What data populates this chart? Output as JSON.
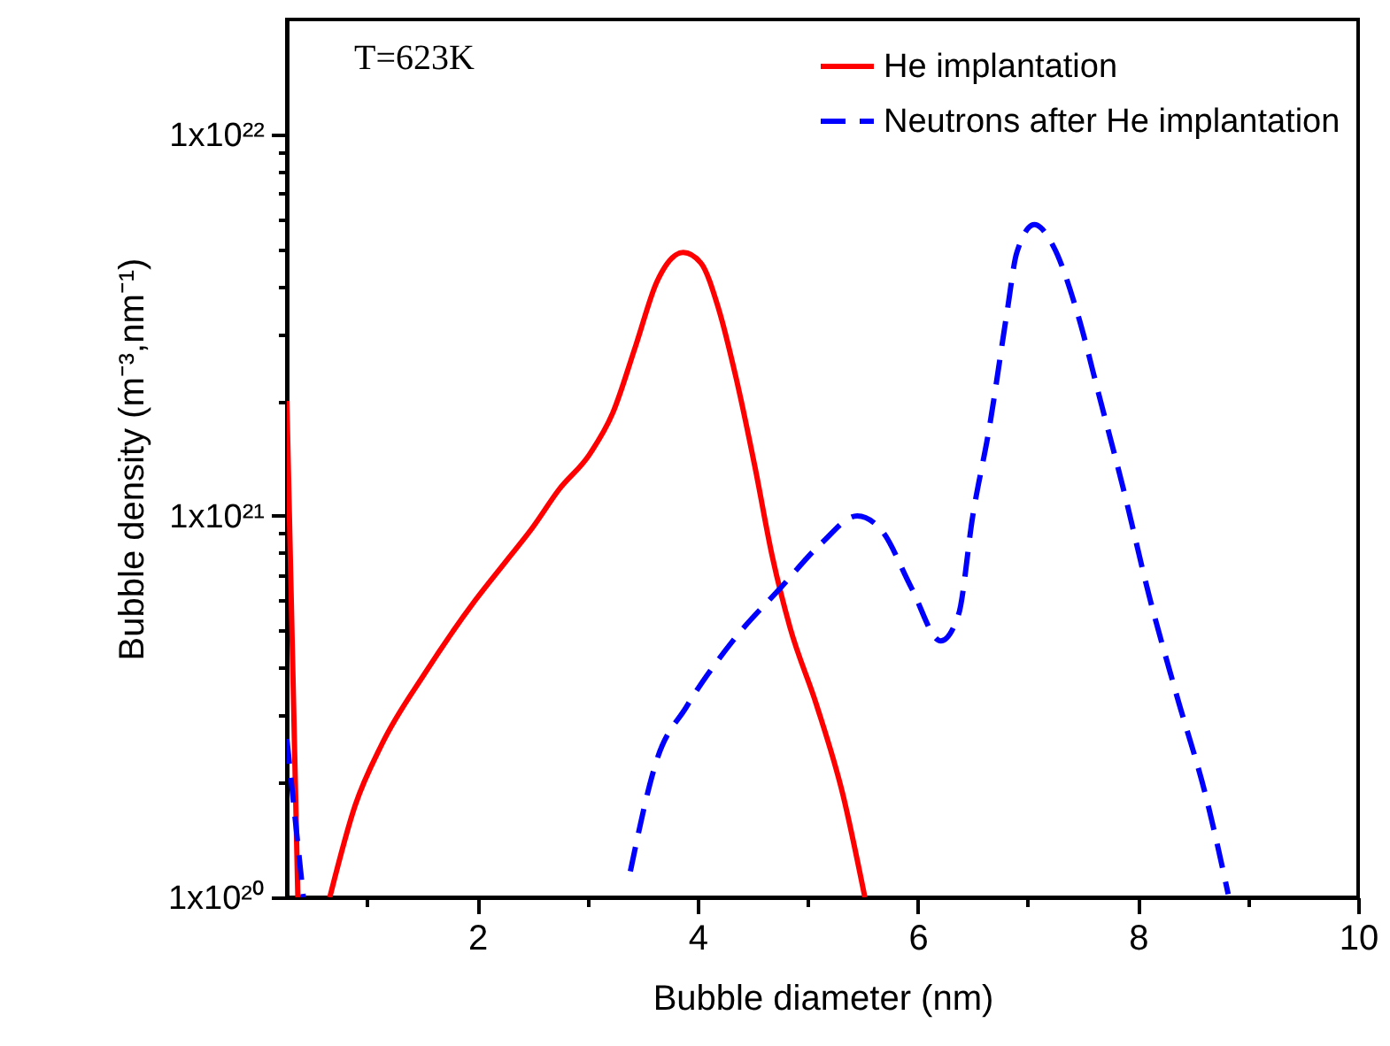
{
  "chart_data": {
    "type": "line",
    "xlabel": "Bubble diameter (nm)",
    "ylabel": "Bubble density (m⁻³,nm⁻¹)",
    "annotations": [
      "T=623K"
    ],
    "log": "y",
    "xlim": [
      0.27,
      10
    ],
    "xticks": [
      {
        "value": 1,
        "label": null
      },
      2,
      {
        "value": 3,
        "label": null
      },
      4,
      {
        "value": 5,
        "label": null
      },
      6,
      {
        "value": 7,
        "label": null
      },
      8,
      {
        "value": 9,
        "label": null
      },
      10
    ],
    "ylim": [
      1e+20,
      2e+22
    ],
    "yticks": [
      {
        "value": 1e+20,
        "label": "1x10²⁰"
      },
      {
        "value": 2e+20,
        "label": null
      },
      {
        "value": 3e+20,
        "label": null
      },
      {
        "value": 4e+20,
        "label": null
      },
      {
        "value": 5e+20,
        "label": null
      },
      {
        "value": 6e+20,
        "label": null
      },
      {
        "value": 7e+20,
        "label": null
      },
      {
        "value": 8e+20,
        "label": null
      },
      {
        "value": 9e+20,
        "label": null
      },
      {
        "value": 1e+21,
        "label": "1x10²¹"
      },
      {
        "value": 2e+21,
        "label": null
      },
      {
        "value": 3e+21,
        "label": null
      },
      {
        "value": 4e+21,
        "label": null
      },
      {
        "value": 5e+21,
        "label": null
      },
      {
        "value": 6e+21,
        "label": null
      },
      {
        "value": 7e+21,
        "label": null
      },
      {
        "value": 8e+21,
        "label": null
      },
      {
        "value": 9e+21,
        "label": null
      },
      {
        "value": 1e+22,
        "label": "1x10²²"
      }
    ],
    "grid": false,
    "legend": "top right",
    "series": [
      {
        "name": "He implantation",
        "color": "#ff0000",
        "line_style": "solid",
        "x": [
          0.27,
          0.37,
          0.5,
          0.66,
          0.89,
          1.13,
          1.53,
          1.98,
          2.26,
          2.5,
          2.74,
          3.02,
          3.23,
          3.44,
          3.63,
          3.87,
          4.03,
          4.19,
          4.35,
          4.52,
          4.68,
          4.84,
          5.08,
          5.32,
          5.52
        ],
        "values": [
          2e+21,
          1e+20,
          null,
          1e+20,
          1.74e+20,
          2.51e+20,
          3.89e+20,
          6e+20,
          7.6e+20,
          9.3e+20,
          1.17e+21,
          1.45e+21,
          1.86e+21,
          2.8e+21,
          4.1e+21,
          4.9e+21,
          4.6e+21,
          3.5e+21,
          2.3e+21,
          1.35e+21,
          7.8e+20,
          5.1e+20,
          3.2e+20,
          1.86e+20,
          1e+20
        ]
      },
      {
        "name": "Neutrons after He implantation",
        "color": "#0000ff",
        "line_style": "dashed",
        "x": [
          0.27,
          0.42,
          2,
          3.39,
          3.63,
          3.9,
          4.32,
          4.76,
          5.13,
          5.45,
          5.68,
          5.94,
          6.21,
          6.37,
          6.5,
          6.65,
          6.81,
          6.9,
          7.06,
          7.23,
          7.45,
          7.66,
          7.87,
          8.1,
          8.35,
          8.63,
          8.82
        ],
        "values": [
          2.6e+20,
          1e+20,
          null,
          1.17e+20,
          2.29e+20,
          3.16e+20,
          4.7e+20,
          6.5e+20,
          8.5e+20,
          1e+21,
          9.1e+20,
          6.5e+20,
          4.7e+20,
          5.5e+20,
          1e+21,
          1.7e+21,
          3.4e+21,
          4.9e+21,
          5.8e+21,
          5.1e+21,
          3.4e+21,
          2e+21,
          1.17e+21,
          6.2e+20,
          3.4e+20,
          1.78e+20,
          1.02e+20
        ]
      }
    ]
  }
}
